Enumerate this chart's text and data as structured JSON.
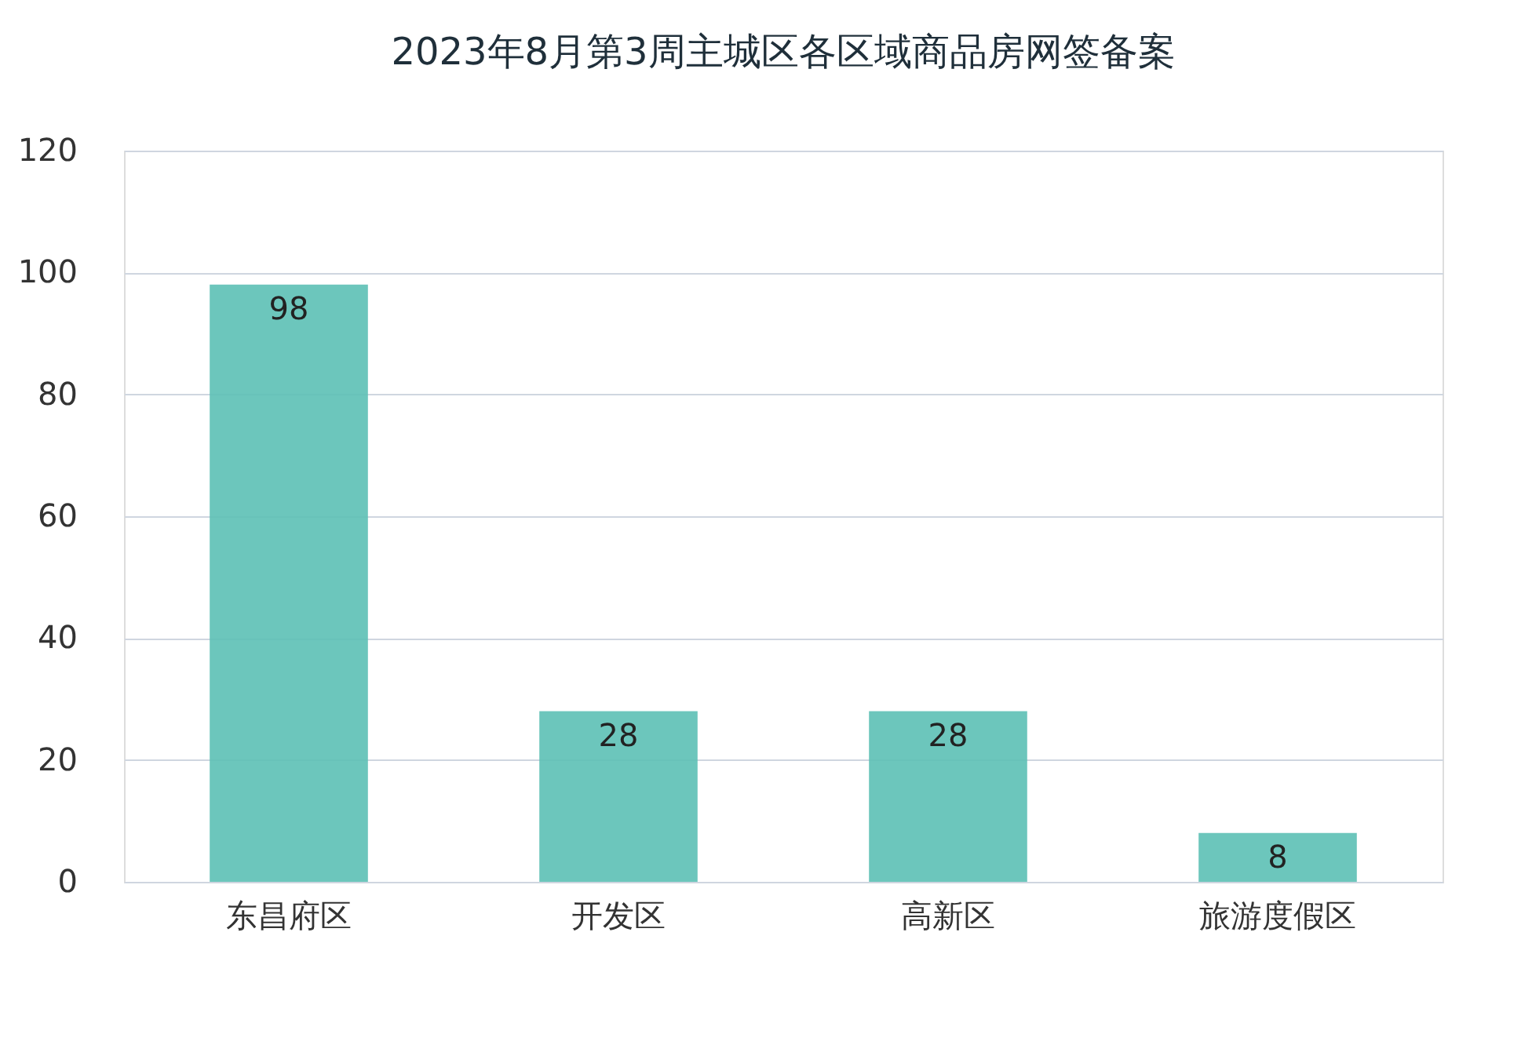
{
  "chart_data": {
    "type": "bar",
    "title": "2023年8月第3周主城区各区域商品房网签备案",
    "categories": [
      "东昌府区",
      "开发区",
      "高新区",
      "旅游度假区"
    ],
    "values": [
      98,
      28,
      28,
      8
    ],
    "color": "#5cc0b5",
    "ylim": [
      0,
      120
    ],
    "yticks": [
      0,
      20,
      40,
      60,
      80,
      100,
      120
    ],
    "grid": "y",
    "data_labels": true
  }
}
